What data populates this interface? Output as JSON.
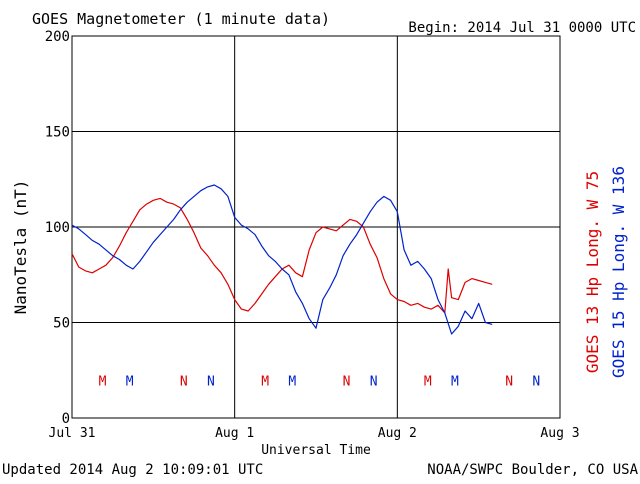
{
  "title": "GOES Magnetometer (1 minute data)",
  "begin_label": "Begin:  2014 Jul 31 0000 UTC",
  "updated_label": "Updated 2014 Aug  2 10:09:01 UTC",
  "credit_label": "NOAA/SWPC Boulder, CO USA",
  "colors": {
    "goes13": "#dd0000",
    "goes15": "#0022cc",
    "grid": "#000000"
  },
  "chart_data": {
    "type": "line",
    "title": "GOES Magnetometer (1 minute data)",
    "xlabel": "Universal Time",
    "ylabel": "NanoTesla (nT)",
    "xlim": [
      0,
      72
    ],
    "ylim": [
      0,
      200
    ],
    "x_unit": "hours since 2014 Jul 31 0000 UTC",
    "x_ticks": [
      {
        "x": 0,
        "label": "Jul 31"
      },
      {
        "x": 24,
        "label": "Aug 1"
      },
      {
        "x": 48,
        "label": "Aug 2"
      },
      {
        "x": 72,
        "label": "Aug 3"
      }
    ],
    "y_ticks": [
      0,
      50,
      100,
      150,
      200
    ],
    "grid": true,
    "series": [
      {
        "name": "GOES 13 Hp  Long. W 75",
        "color": "#dd0000",
        "x": [
          0,
          1,
          2,
          3,
          4,
          5,
          6,
          7,
          8,
          9,
          10,
          11,
          12,
          13,
          14,
          15,
          16,
          17,
          18,
          19,
          20,
          21,
          22,
          23,
          24,
          25,
          26,
          27,
          28,
          29,
          30,
          31,
          32,
          33,
          34,
          35,
          36,
          37,
          38,
          39,
          40,
          41,
          42,
          43,
          44,
          45,
          46,
          47,
          48,
          49,
          50,
          51,
          52,
          53,
          54,
          55,
          55.5,
          56,
          57,
          58,
          59,
          60,
          61,
          62
        ],
        "y": [
          86,
          79,
          77,
          76,
          78,
          80,
          84,
          90,
          97,
          103,
          109,
          112,
          114,
          115,
          113,
          112,
          110,
          104,
          97,
          89,
          85,
          80,
          76,
          70,
          62,
          57,
          56,
          60,
          65,
          70,
          74,
          78,
          80,
          76,
          74,
          88,
          97,
          100,
          99,
          98,
          101,
          104,
          103,
          100,
          91,
          84,
          73,
          65,
          62,
          61,
          59,
          60,
          58,
          57,
          59,
          55,
          78,
          63,
          62,
          71,
          73,
          72,
          71,
          70
        ]
      },
      {
        "name": "GOES 15 Hp  Long. W 136",
        "color": "#0022cc",
        "x": [
          0,
          1,
          2,
          3,
          4,
          5,
          6,
          7,
          8,
          9,
          10,
          11,
          12,
          13,
          14,
          15,
          16,
          17,
          18,
          19,
          20,
          21,
          22,
          23,
          24,
          25,
          26,
          27,
          28,
          29,
          30,
          31,
          32,
          33,
          34,
          35,
          36,
          37,
          38,
          39,
          40,
          41,
          42,
          43,
          44,
          45,
          46,
          47,
          48,
          49,
          50,
          51,
          52,
          53,
          54,
          55,
          56,
          57,
          58,
          59,
          60,
          61,
          62
        ],
        "y": [
          101,
          99,
          96,
          93,
          91,
          88,
          85,
          83,
          80,
          78,
          82,
          87,
          92,
          96,
          100,
          104,
          109,
          113,
          116,
          119,
          121,
          122,
          120,
          116,
          105,
          101,
          99,
          96,
          90,
          85,
          82,
          78,
          75,
          66,
          60,
          52,
          47,
          62,
          68,
          75,
          85,
          91,
          96,
          102,
          108,
          113,
          116,
          114,
          108,
          88,
          80,
          82,
          78,
          73,
          62,
          55,
          44,
          48,
          56,
          52,
          60,
          50,
          49
        ]
      }
    ],
    "markers": [
      {
        "x": 4.5,
        "label": "M",
        "series": "GOES 13 Hp  Long. W 75"
      },
      {
        "x": 8.5,
        "label": "M",
        "series": "GOES 15 Hp  Long. W 136"
      },
      {
        "x": 16.5,
        "label": "N",
        "series": "GOES 13 Hp  Long. W 75"
      },
      {
        "x": 20.5,
        "label": "N",
        "series": "GOES 15 Hp  Long. W 136"
      },
      {
        "x": 28.5,
        "label": "M",
        "series": "GOES 13 Hp  Long. W 75"
      },
      {
        "x": 32.5,
        "label": "M",
        "series": "GOES 15 Hp  Long. W 136"
      },
      {
        "x": 40.5,
        "label": "N",
        "series": "GOES 13 Hp  Long. W 75"
      },
      {
        "x": 44.5,
        "label": "N",
        "series": "GOES 15 Hp  Long. W 136"
      },
      {
        "x": 52.5,
        "label": "M",
        "series": "GOES 13 Hp  Long. W 75"
      },
      {
        "x": 56.5,
        "label": "M",
        "series": "GOES 15 Hp  Long. W 136"
      },
      {
        "x": 64.5,
        "label": "N",
        "series": "GOES 13 Hp  Long. W 75"
      },
      {
        "x": 68.5,
        "label": "N",
        "series": "GOES 15 Hp  Long. W 136"
      }
    ],
    "marker_y": 17
  }
}
